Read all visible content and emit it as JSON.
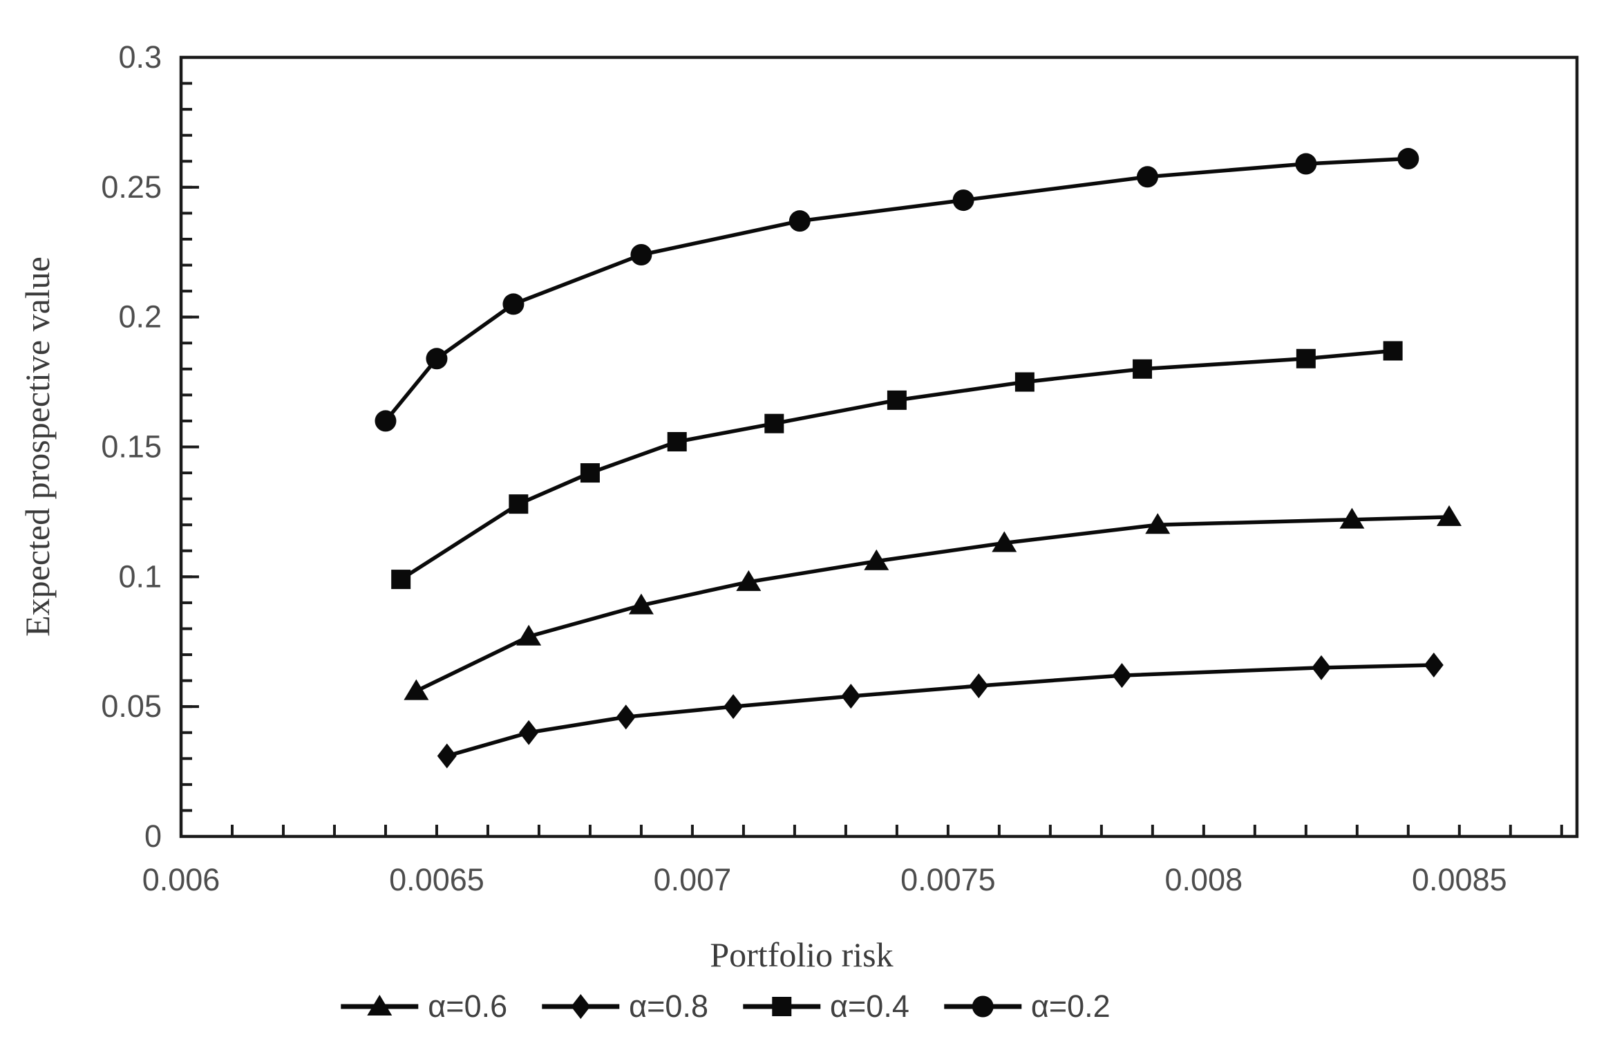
{
  "chart_data": {
    "type": "line",
    "title": "",
    "xlabel": "Portfolio risk",
    "ylabel": "Expected prospective value",
    "xlim": [
      0.006,
      0.00873
    ],
    "ylim": [
      0,
      0.3
    ],
    "x_major_ticks": [
      0.006,
      0.0065,
      0.007,
      0.0075,
      0.008,
      0.0085
    ],
    "x_tick_labels": [
      "0.006",
      "0.0065",
      "0.007",
      "0.0075",
      "0.008",
      "0.0085"
    ],
    "x_minor_step": 0.0001,
    "y_major_ticks": [
      0,
      0.05,
      0.1,
      0.15,
      0.2,
      0.25,
      0.3
    ],
    "y_tick_labels": [
      "0",
      "0.05",
      "0.1",
      "0.15",
      "0.2",
      "0.25",
      "0.3"
    ],
    "y_minor_step": 0.01,
    "grid": false,
    "legend_position": "bottom",
    "colors": {
      "series": "#0a0a0a",
      "axis": "#1a1a1a",
      "tick_labels": "#4d4d4d",
      "axis_titles": "#3b3b3b",
      "legend_text": "#404040",
      "background": "#ffffff"
    },
    "series": [
      {
        "name": "α=0.6",
        "marker": "triangle",
        "x": [
          0.00646,
          0.00668,
          0.0069,
          0.00711,
          0.00736,
          0.00761,
          0.00791,
          0.00829,
          0.00848
        ],
        "y": [
          0.056,
          0.077,
          0.089,
          0.098,
          0.106,
          0.113,
          0.12,
          0.122,
          0.123
        ]
      },
      {
        "name": "α=0.8",
        "marker": "diamond",
        "x": [
          0.00652,
          0.00668,
          0.00687,
          0.00708,
          0.00731,
          0.00756,
          0.00784,
          0.00823,
          0.00845
        ],
        "y": [
          0.031,
          0.04,
          0.046,
          0.05,
          0.054,
          0.058,
          0.062,
          0.065,
          0.066
        ]
      },
      {
        "name": "α=0.4",
        "marker": "square",
        "x": [
          0.00643,
          0.00666,
          0.0068,
          0.00697,
          0.00716,
          0.0074,
          0.00765,
          0.00788,
          0.0082,
          0.00837
        ],
        "y": [
          0.099,
          0.128,
          0.14,
          0.152,
          0.159,
          0.168,
          0.175,
          0.18,
          0.184,
          0.187
        ]
      },
      {
        "name": "α=0.2",
        "marker": "circle",
        "x": [
          0.0064,
          0.0065,
          0.00665,
          0.0069,
          0.00721,
          0.00753,
          0.00789,
          0.0082,
          0.0084
        ],
        "y": [
          0.16,
          0.184,
          0.205,
          0.224,
          0.237,
          0.245,
          0.254,
          0.259,
          0.261
        ]
      }
    ]
  }
}
